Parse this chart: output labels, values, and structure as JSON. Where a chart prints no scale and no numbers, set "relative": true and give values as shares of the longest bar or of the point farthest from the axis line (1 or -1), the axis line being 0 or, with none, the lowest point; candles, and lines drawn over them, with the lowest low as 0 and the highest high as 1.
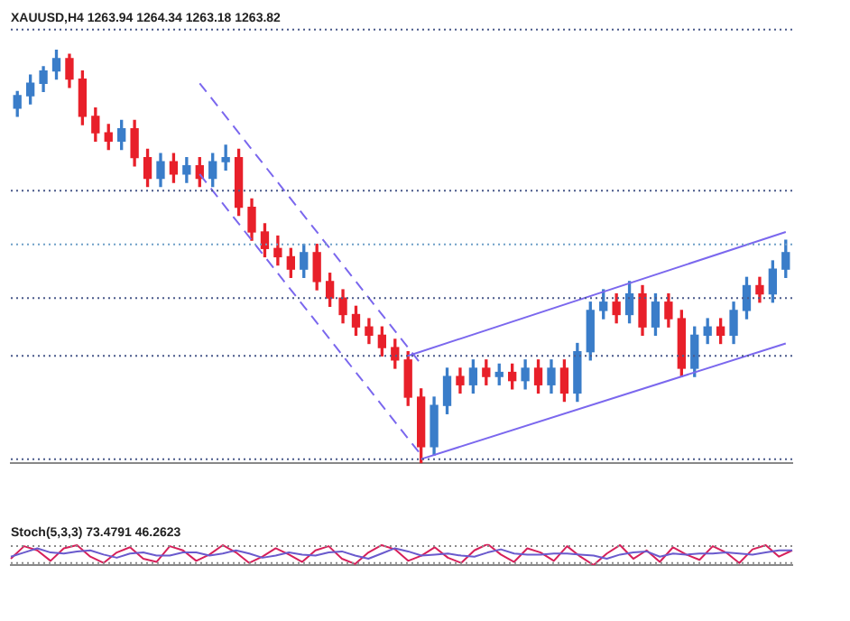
{
  "chart_data": [
    {
      "type": "candlestick",
      "title": "XAUUSD,H4 1263.94 1264.34 1263.18 1263.82",
      "relative": true,
      "legend": false,
      "grid": false,
      "categories": [
        null,
        null,
        null,
        null,
        null,
        null,
        null,
        null,
        null,
        null,
        null,
        null,
        null,
        null,
        null,
        null,
        null,
        null,
        null,
        null,
        null,
        null,
        null,
        null,
        null,
        null,
        null,
        null,
        null,
        null,
        null,
        null,
        null,
        null,
        null,
        null,
        null,
        null,
        null,
        null,
        null,
        null,
        null,
        null,
        null,
        null,
        null,
        null,
        null,
        null,
        null,
        null,
        null,
        null,
        null,
        null,
        null,
        null,
        null,
        null
      ],
      "ohlc": [
        [
          0.86,
          0.9,
          0.84,
          0.89
        ],
        [
          0.89,
          0.94,
          0.87,
          0.92
        ],
        [
          0.92,
          0.96,
          0.9,
          0.95
        ],
        [
          0.95,
          1.0,
          0.93,
          0.98
        ],
        [
          0.98,
          0.99,
          0.91,
          0.93
        ],
        [
          0.93,
          0.95,
          0.82,
          0.84
        ],
        [
          0.84,
          0.86,
          0.78,
          0.8
        ],
        [
          0.8,
          0.82,
          0.76,
          0.78
        ],
        [
          0.78,
          0.83,
          0.76,
          0.81
        ],
        [
          0.81,
          0.83,
          0.72,
          0.74
        ],
        [
          0.74,
          0.76,
          0.67,
          0.69
        ],
        [
          0.69,
          0.75,
          0.67,
          0.73
        ],
        [
          0.73,
          0.75,
          0.68,
          0.7
        ],
        [
          0.7,
          0.74,
          0.68,
          0.72
        ],
        [
          0.72,
          0.74,
          0.67,
          0.69
        ],
        [
          0.69,
          0.75,
          0.67,
          0.73
        ],
        [
          0.73,
          0.77,
          0.71,
          0.74
        ],
        [
          0.74,
          0.76,
          0.6,
          0.62
        ],
        [
          0.62,
          0.64,
          0.54,
          0.56
        ],
        [
          0.56,
          0.58,
          0.5,
          0.52
        ],
        [
          0.52,
          0.55,
          0.48,
          0.5
        ],
        [
          0.5,
          0.52,
          0.45,
          0.47
        ],
        [
          0.47,
          0.53,
          0.45,
          0.51
        ],
        [
          0.51,
          0.53,
          0.42,
          0.44
        ],
        [
          0.44,
          0.46,
          0.38,
          0.4
        ],
        [
          0.4,
          0.42,
          0.34,
          0.36
        ],
        [
          0.36,
          0.38,
          0.31,
          0.33
        ],
        [
          0.33,
          0.35,
          0.29,
          0.31
        ],
        [
          0.31,
          0.33,
          0.26,
          0.28
        ],
        [
          0.28,
          0.3,
          0.23,
          0.25
        ],
        [
          0.25,
          0.27,
          0.14,
          0.16
        ],
        [
          0.16,
          0.18,
          0.0,
          0.04
        ],
        [
          0.04,
          0.16,
          0.02,
          0.14
        ],
        [
          0.14,
          0.23,
          0.12,
          0.21
        ],
        [
          0.21,
          0.23,
          0.17,
          0.19
        ],
        [
          0.19,
          0.25,
          0.17,
          0.23
        ],
        [
          0.23,
          0.25,
          0.19,
          0.21
        ],
        [
          0.21,
          0.24,
          0.19,
          0.22
        ],
        [
          0.22,
          0.24,
          0.18,
          0.2
        ],
        [
          0.2,
          0.25,
          0.18,
          0.23
        ],
        [
          0.23,
          0.25,
          0.17,
          0.19
        ],
        [
          0.19,
          0.25,
          0.17,
          0.23
        ],
        [
          0.23,
          0.25,
          0.15,
          0.17
        ],
        [
          0.17,
          0.29,
          0.15,
          0.27
        ],
        [
          0.27,
          0.39,
          0.25,
          0.37
        ],
        [
          0.37,
          0.42,
          0.35,
          0.39
        ],
        [
          0.39,
          0.41,
          0.34,
          0.36
        ],
        [
          0.36,
          0.44,
          0.34,
          0.41
        ],
        [
          0.41,
          0.43,
          0.31,
          0.33
        ],
        [
          0.33,
          0.41,
          0.31,
          0.39
        ],
        [
          0.39,
          0.41,
          0.33,
          0.35
        ],
        [
          0.35,
          0.37,
          0.21,
          0.23
        ],
        [
          0.23,
          0.33,
          0.21,
          0.31
        ],
        [
          0.31,
          0.35,
          0.29,
          0.33
        ],
        [
          0.33,
          0.35,
          0.29,
          0.31
        ],
        [
          0.31,
          0.39,
          0.29,
          0.37
        ],
        [
          0.37,
          0.45,
          0.35,
          0.43
        ],
        [
          0.43,
          0.45,
          0.39,
          0.41
        ],
        [
          0.41,
          0.49,
          0.39,
          0.47
        ],
        [
          0.47,
          0.54,
          0.45,
          0.51
        ]
      ],
      "colors": [
        "#3a7dc9",
        "#3a7dc9",
        "#3a7dc9",
        "#3a7dc9",
        "#e8202a",
        "#e8202a",
        "#e8202a",
        "#e8202a",
        "#3a7dc9",
        "#e8202a",
        "#e8202a",
        "#3a7dc9",
        "#e8202a",
        "#3a7dc9",
        "#e8202a",
        "#3a7dc9",
        "#3a7dc9",
        "#e8202a",
        "#e8202a",
        "#e8202a",
        "#e8202a",
        "#e8202a",
        "#3a7dc9",
        "#e8202a",
        "#e8202a",
        "#e8202a",
        "#e8202a",
        "#e8202a",
        "#e8202a",
        "#e8202a",
        "#e8202a",
        "#e8202a",
        "#3a7dc9",
        "#3a7dc9",
        "#e8202a",
        "#3a7dc9",
        "#e8202a",
        "#3a7dc9",
        "#e8202a",
        "#3a7dc9",
        "#e8202a",
        "#3a7dc9",
        "#e8202a",
        "#3a7dc9",
        "#3a7dc9",
        "#3a7dc9",
        "#e8202a",
        "#3a7dc9",
        "#e8202a",
        "#3a7dc9",
        "#e8202a",
        "#e8202a",
        "#3a7dc9",
        "#3a7dc9",
        "#e8202a",
        "#3a7dc9",
        "#3a7dc9",
        "#e8202a",
        "#3a7dc9",
        "#3a7dc9"
      ],
      "series": [
        {
          "type": "line",
          "color": "#7b68ee",
          "line_style": "solid",
          "values": [
            null,
            null,
            null,
            null,
            null,
            null,
            null,
            null,
            null,
            null,
            null,
            null,
            null,
            null,
            null,
            null,
            null,
            null,
            null,
            null,
            null,
            null,
            null,
            null,
            null,
            null,
            null,
            null,
            null,
            null,
            null,
            0.01,
            null,
            null,
            null,
            null,
            null,
            null,
            null,
            null,
            null,
            null,
            null,
            null,
            null,
            null,
            null,
            null,
            null,
            null,
            null,
            null,
            null,
            null,
            null,
            null,
            null,
            null,
            null,
            0.29
          ]
        },
        {
          "type": "line",
          "color": "#7b68ee",
          "line_style": "solid",
          "values": [
            null,
            null,
            null,
            null,
            null,
            null,
            null,
            null,
            null,
            null,
            null,
            null,
            null,
            null,
            null,
            null,
            null,
            null,
            null,
            null,
            null,
            null,
            null,
            null,
            null,
            null,
            null,
            null,
            null,
            null,
            0.26,
            null,
            null,
            null,
            null,
            null,
            null,
            null,
            null,
            null,
            null,
            null,
            null,
            null,
            null,
            null,
            null,
            null,
            null,
            null,
            null,
            null,
            null,
            null,
            null,
            null,
            null,
            null,
            null,
            0.56
          ]
        },
        {
          "type": "line",
          "color": "#7b68ee",
          "line_style": "dashed",
          "values": [
            null,
            null,
            null,
            null,
            null,
            null,
            null,
            null,
            null,
            null,
            null,
            null,
            null,
            null,
            0.92,
            null,
            null,
            null,
            null,
            null,
            null,
            null,
            null,
            null,
            null,
            null,
            null,
            null,
            null,
            null,
            null,
            0.24,
            null,
            null,
            null,
            null,
            null,
            null,
            null,
            null,
            null,
            null,
            null,
            null,
            null,
            null,
            null,
            null,
            null,
            null,
            null,
            null,
            null,
            null,
            null,
            null,
            null,
            null,
            null,
            null
          ]
        },
        {
          "type": "line",
          "color": "#7b68ee",
          "line_style": "dashed",
          "values": [
            null,
            null,
            null,
            null,
            null,
            null,
            null,
            null,
            null,
            null,
            null,
            null,
            null,
            null,
            0.7,
            null,
            null,
            null,
            null,
            null,
            null,
            null,
            null,
            null,
            null,
            null,
            null,
            null,
            null,
            null,
            null,
            0.02,
            null,
            null,
            null,
            null,
            null,
            null,
            null,
            null,
            null,
            null,
            null,
            null,
            null,
            null,
            null,
            null,
            null,
            null,
            null,
            null,
            null,
            null,
            null,
            null,
            null,
            null,
            null,
            null
          ]
        }
      ],
      "ref_lines": [
        {
          "axis": "y",
          "value": 1.05,
          "color": "#4a5a8a",
          "line_style": "dotted"
        },
        {
          "axis": "y",
          "value": 0.66,
          "color": "#4a5a8a",
          "line_style": "dotted"
        },
        {
          "axis": "y",
          "value": 0.53,
          "color": "#6fa0c8",
          "line_style": "dotted"
        },
        {
          "axis": "y",
          "value": 0.4,
          "color": "#4a5a8a",
          "line_style": "dotted"
        },
        {
          "axis": "y",
          "value": 0.26,
          "color": "#4a5a8a",
          "line_style": "dotted"
        },
        {
          "axis": "y",
          "value": 0.01,
          "color": "#4a5a8a",
          "line_style": "dotted"
        }
      ]
    },
    {
      "type": "line",
      "title": "Stoch(5,3,3) 73.4791 46.2623",
      "relative": true,
      "legend": false,
      "grid": false,
      "marker": "none",
      "categories": [
        null,
        null,
        null,
        null,
        null,
        null,
        null,
        null,
        null,
        null,
        null,
        null,
        null,
        null,
        null,
        null,
        null,
        null,
        null,
        null,
        null,
        null,
        null,
        null,
        null,
        null,
        null,
        null,
        null,
        null,
        null,
        null,
        null,
        null,
        null,
        null,
        null,
        null,
        null,
        null,
        null,
        null,
        null,
        null,
        null,
        null,
        null,
        null,
        null,
        null,
        null,
        null,
        null,
        null,
        null,
        null,
        null,
        null,
        null,
        null
      ],
      "series": [
        {
          "color": "#6a5acd",
          "values": [
            0.4,
            0.6,
            0.8,
            0.6,
            0.55,
            0.65,
            0.7,
            0.5,
            0.35,
            0.55,
            0.6,
            0.45,
            0.45,
            0.6,
            0.6,
            0.45,
            0.55,
            0.7,
            0.55,
            0.35,
            0.45,
            0.6,
            0.5,
            0.45,
            0.6,
            0.65,
            0.45,
            0.3,
            0.55,
            0.8,
            0.65,
            0.45,
            0.5,
            0.55,
            0.45,
            0.4,
            0.6,
            0.75,
            0.55,
            0.5,
            0.5,
            0.55,
            0.55,
            0.5,
            0.45,
            0.3,
            0.5,
            0.6,
            0.65,
            0.4,
            0.55,
            0.5,
            0.55,
            0.55,
            0.6,
            0.55,
            0.5,
            0.6,
            0.7,
            0.7
          ]
        },
        {
          "color": "#d6205a",
          "values": [
            0.3,
            0.9,
            0.7,
            0.2,
            0.8,
            0.95,
            0.4,
            0.1,
            0.6,
            0.85,
            0.3,
            0.15,
            0.9,
            0.7,
            0.2,
            0.5,
            0.95,
            0.6,
            0.1,
            0.4,
            0.8,
            0.5,
            0.15,
            0.7,
            0.9,
            0.3,
            0.05,
            0.6,
            0.95,
            0.75,
            0.2,
            0.45,
            0.85,
            0.35,
            0.1,
            0.7,
            1.0,
            0.5,
            0.15,
            0.8,
            0.6,
            0.2,
            0.9,
            0.4,
            0.0,
            0.55,
            0.95,
            0.3,
            0.7,
            0.15,
            0.85,
            0.5,
            0.25,
            0.9,
            0.6,
            0.1,
            0.75,
            0.95,
            0.4,
            0.7
          ]
        }
      ],
      "ref_lines": [
        {
          "axis": "y",
          "value": 0.9,
          "color": "#8a8a8a",
          "line_style": "dotted"
        },
        {
          "axis": "y",
          "value": 0.1,
          "color": "#8a8a8a",
          "line_style": "dotted"
        }
      ]
    }
  ]
}
